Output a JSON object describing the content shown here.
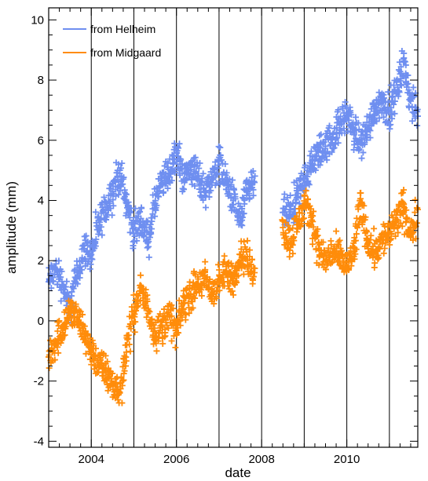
{
  "chart_data": {
    "type": "scatter",
    "xlabel": "date",
    "ylabel": "amplitude (mm)",
    "xlim": [
      "2003-01-01",
      "2011-09-01"
    ],
    "ylim": [
      -4.2,
      10.4
    ],
    "x_ticks": [
      2004,
      2006,
      2008,
      2010
    ],
    "y_ticks": [
      -4,
      -2,
      0,
      2,
      4,
      6,
      8,
      10
    ],
    "vertical_reference_lines": [
      "2004-01-01",
      "2005-01-01",
      "2006-01-01",
      "2007-01-01",
      "2008-01-01",
      "2009-01-01",
      "2010-01-01",
      "2011-01-01"
    ],
    "marker": "+",
    "legend_placement": "top-left",
    "gap": [
      "2008-01-01",
      "2008-07-01"
    ],
    "series": [
      {
        "name": "from Helheim",
        "color": "#6f8ff0",
        "x": [
          "2003-01-01",
          "2003-03-01",
          "2003-05-01",
          "2003-07-01",
          "2003-09-01",
          "2003-11-01",
          "2004-01-01",
          "2004-03-01",
          "2004-05-01",
          "2004-07-01",
          "2004-09-01",
          "2004-11-01",
          "2005-01-01",
          "2005-03-01",
          "2005-05-01",
          "2005-07-01",
          "2005-09-01",
          "2005-11-01",
          "2006-01-01",
          "2006-03-01",
          "2006-05-01",
          "2006-07-01",
          "2006-09-01",
          "2006-11-01",
          "2007-01-01",
          "2007-03-01",
          "2007-05-01",
          "2007-07-01",
          "2007-09-01",
          "2007-11-01",
          "2008-07-01",
          "2008-09-01",
          "2008-11-01",
          "2009-01-01",
          "2009-03-01",
          "2009-05-01",
          "2009-07-01",
          "2009-09-01",
          "2009-11-01",
          "2010-01-01",
          "2010-03-01",
          "2010-05-01",
          "2010-07-01",
          "2010-09-01",
          "2010-11-01",
          "2011-01-01",
          "2011-03-01",
          "2011-05-01",
          "2011-07-01",
          "2011-09-01"
        ],
        "y": [
          1.3,
          1.7,
          1.2,
          0.4,
          1.6,
          2.4,
          2.2,
          3.1,
          3.7,
          4.3,
          4.9,
          3.9,
          2.9,
          3.4,
          2.7,
          3.9,
          4.6,
          4.9,
          5.6,
          4.7,
          5.1,
          4.8,
          4.3,
          4.7,
          5.3,
          4.6,
          4.0,
          3.3,
          4.3,
          4.6,
          3.6,
          3.5,
          4.1,
          4.7,
          5.1,
          5.6,
          5.8,
          6.1,
          6.5,
          6.9,
          6.3,
          5.9,
          6.4,
          7.1,
          7.3,
          7.0,
          7.6,
          8.6,
          7.3,
          6.8
        ]
      },
      {
        "name": "from Midgaard",
        "color": "#ff8c0a",
        "x": [
          "2003-01-01",
          "2003-03-01",
          "2003-05-01",
          "2003-07-01",
          "2003-09-01",
          "2003-11-01",
          "2004-01-01",
          "2004-03-01",
          "2004-05-01",
          "2004-07-01",
          "2004-09-01",
          "2004-11-01",
          "2005-01-01",
          "2005-03-01",
          "2005-05-01",
          "2005-07-01",
          "2005-09-01",
          "2005-11-01",
          "2006-01-01",
          "2006-03-01",
          "2006-05-01",
          "2006-07-01",
          "2006-09-01",
          "2006-11-01",
          "2007-01-01",
          "2007-03-01",
          "2007-05-01",
          "2007-07-01",
          "2007-09-01",
          "2007-11-01",
          "2008-07-01",
          "2008-09-01",
          "2008-11-01",
          "2009-01-01",
          "2009-03-01",
          "2009-05-01",
          "2009-07-01",
          "2009-09-01",
          "2009-11-01",
          "2010-01-01",
          "2010-03-01",
          "2010-05-01",
          "2010-07-01",
          "2010-09-01",
          "2010-11-01",
          "2011-01-01",
          "2011-03-01",
          "2011-05-01",
          "2011-07-01",
          "2011-09-01"
        ],
        "y": [
          -1.2,
          -0.7,
          -0.2,
          0.3,
          0.1,
          -0.4,
          -1.0,
          -1.4,
          -1.7,
          -2.1,
          -2.4,
          -0.8,
          0.3,
          1.0,
          0.4,
          -0.4,
          -0.2,
          0.2,
          -0.4,
          0.6,
          0.9,
          1.2,
          1.4,
          0.9,
          1.3,
          1.6,
          1.4,
          2.2,
          2.0,
          1.6,
          3.1,
          2.6,
          3.2,
          3.8,
          3.5,
          2.4,
          2.0,
          2.3,
          2.1,
          1.8,
          2.3,
          3.9,
          2.6,
          2.3,
          2.7,
          2.9,
          3.3,
          3.8,
          2.8,
          3.7
        ]
      }
    ]
  }
}
